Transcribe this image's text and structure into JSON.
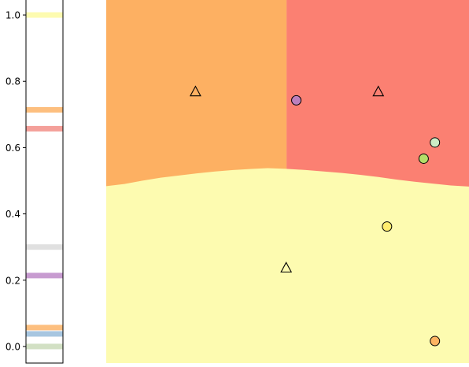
{
  "chart_data": [
    {
      "type": "heatmap",
      "role": "colorbar-strip",
      "title": "",
      "xlabel": "",
      "ylabel": "",
      "ylim": [
        -0.05,
        1.05
      ],
      "yticks": [
        0.0,
        0.2,
        0.4,
        0.6,
        0.8,
        1.0
      ],
      "ytick_labels": [
        "0.0",
        "0.2",
        "0.4",
        "0.6",
        "0.8",
        "1.0"
      ],
      "bands": [
        {
          "value": 1.0,
          "color": "#fdfbb0"
        },
        {
          "value": 0.714,
          "color": "#fdbf7f"
        },
        {
          "value": 0.657,
          "color": "#f4a09a"
        },
        {
          "value": 0.3,
          "color": "#e0e0e0"
        },
        {
          "value": 0.214,
          "color": "#c79bd0"
        },
        {
          "value": 0.057,
          "color": "#fdbf7f"
        },
        {
          "value": 0.038,
          "color": "#a7c6e0"
        },
        {
          "value": 0.0,
          "color": "#d2e0c4"
        }
      ]
    },
    {
      "type": "scatter",
      "role": "decision-regions",
      "title": "",
      "xlabel": "",
      "ylabel": "",
      "xlim": [
        0.0,
        1.0
      ],
      "ylim": [
        0.0,
        1.0
      ],
      "regions": [
        {
          "name": "orange-region",
          "color": "#fdb062"
        },
        {
          "name": "red-region",
          "color": "#fb8072"
        },
        {
          "name": "yellow-region",
          "color": "#fdfbb0"
        }
      ],
      "centroids": [
        {
          "x": 0.246,
          "y": 0.74,
          "marker": "triangle"
        },
        {
          "x": 0.75,
          "y": 0.74,
          "marker": "triangle"
        },
        {
          "x": 0.496,
          "y": 0.26,
          "marker": "triangle"
        }
      ],
      "points": [
        {
          "x": 0.524,
          "y": 0.716,
          "color": "#bc80bd"
        },
        {
          "x": 0.906,
          "y": 0.601,
          "color": "#ccebc5"
        },
        {
          "x": 0.875,
          "y": 0.557,
          "color": "#b3de69"
        },
        {
          "x": 0.774,
          "y": 0.372,
          "color": "#ffed6f"
        },
        {
          "x": 0.906,
          "y": 0.06,
          "color": "#fdb462"
        }
      ]
    }
  ]
}
